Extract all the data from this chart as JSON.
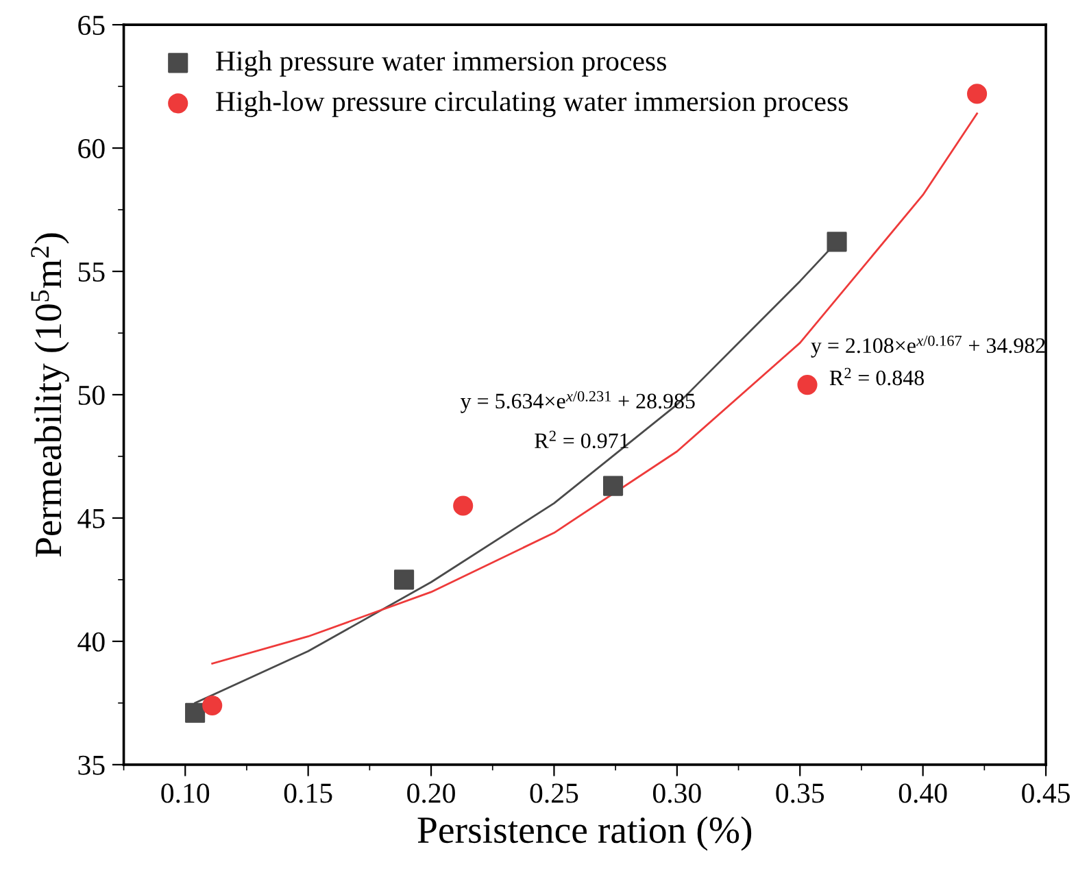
{
  "chart_data": {
    "type": "scatter",
    "xlabel": "Persistence ration (%)",
    "ylabel": "Permeability (10$^{5}$m$^{2}$)",
    "xlim": [
      0.075,
      0.45
    ],
    "ylim": [
      35,
      65
    ],
    "xticks": [
      {
        "value": 0.1,
        "label": "0.10"
      },
      0.15,
      {
        "value": 0.2,
        "label": "0.20"
      },
      0.25,
      {
        "value": 0.3,
        "label": "0.30"
      },
      0.35,
      {
        "value": 0.4,
        "label": "0.40"
      },
      0.45
    ],
    "yticks": [
      35,
      40,
      45,
      50,
      55,
      60,
      65
    ],
    "legend": "top left",
    "grid": false,
    "series": [
      {
        "name": "High pressure water immersion process",
        "color": "#4a4a4a",
        "marker": "square",
        "x": [
          0.104,
          0.189,
          0.274,
          0.365
        ],
        "values": [
          37.1,
          42.5,
          46.3,
          56.2
        ]
      },
      {
        "name": "High-low pressure circulating water immersion process",
        "color": "#ee3a3a",
        "marker": "circle",
        "x": [
          0.111,
          0.213,
          0.353,
          0.422
        ],
        "values": [
          37.4,
          45.5,
          50.4,
          62.2
        ]
      },
      {
        "type": "line",
        "color": "#4a4a4a",
        "x": [
          0.104,
          0.15,
          0.2,
          0.25,
          0.3,
          0.35,
          0.365
        ],
        "values": [
          37.5,
          39.6,
          42.4,
          45.6,
          49.6,
          54.6,
          56.2
        ]
      },
      {
        "type": "line",
        "color": "#ee3a3a",
        "x": [
          0.111,
          0.15,
          0.2,
          0.25,
          0.3,
          0.35,
          0.4,
          0.422
        ],
        "values": [
          39.1,
          40.2,
          42.0,
          44.4,
          47.7,
          52.1,
          58.1,
          61.4
        ]
      }
    ],
    "annotations": [
      "y = 5.634×e$^{x/0.231}$ + 28.985",
      "R$^{2}$ = 0.971",
      "y = 2.108×e$^{x/0.167}$ + 34.982",
      "R$^{2}$ = 0.848"
    ]
  }
}
